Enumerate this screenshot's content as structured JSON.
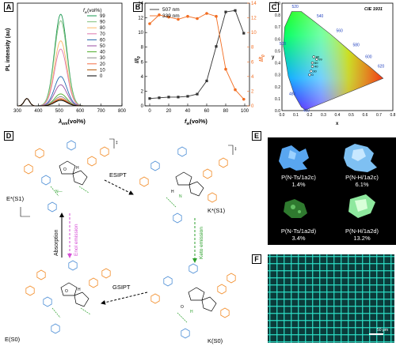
{
  "panels": {
    "a": "A",
    "b": "B",
    "c": "C",
    "d": "D",
    "e": "E",
    "f": "F"
  },
  "panelA": {
    "ylabel": "PL intensity (au)",
    "xlabel": "λ",
    "xlabel_sub": "em",
    "xlabel_unit": "(vol%)",
    "legend_title": "f",
    "legend_title_sub": "w",
    "legend_title_unit": "(vol%)",
    "xticks": [
      "300",
      "400",
      "500",
      "600",
      "700",
      "800"
    ]
  },
  "panelB": {
    "ylabel_left": "I/I",
    "ylabel_left_sub": "0",
    "ylabel_right": "I/I",
    "ylabel_right_sub": "0",
    "xlabel": "f",
    "xlabel_sub": "w",
    "xlabel_unit": "(vol%)",
    "xticks": [
      "0",
      "20",
      "40",
      "60",
      "80",
      "100"
    ],
    "yticks_left": [
      "0",
      "2",
      "4",
      "6",
      "8",
      "10",
      "12",
      "14"
    ],
    "yticks_right": [
      "0",
      "2",
      "4",
      "6",
      "8",
      "10",
      "12",
      "14"
    ]
  },
  "panelC": {
    "title": "CIE 1931",
    "xlabel": "x",
    "ylabel": "y",
    "wavelengths": [
      "520",
      "540",
      "560",
      "580",
      "600",
      "620",
      "500",
      "480",
      "460"
    ],
    "xticks": [
      "0.0",
      "0.1",
      "0.2",
      "0.3",
      "0.4",
      "0.5",
      "0.6",
      "0.7",
      "0.8"
    ],
    "yticks": [
      "0.0",
      "0.1",
      "0.2",
      "0.3",
      "0.4",
      "0.5",
      "0.6",
      "0.7",
      "0.8",
      "0.9"
    ]
  },
  "panelD": {
    "state_es1": "E*(S1)",
    "state_ks1": "K*(S1)",
    "state_ks0": "K(S0)",
    "state_es0": "E(S0)",
    "esipt": "ESIPT",
    "gsipt": "GSIPT",
    "absorption": "Absorption",
    "enol_emission": "Enol emission",
    "keto_emission": "Keto emission",
    "bracket_mark": "‡"
  },
  "panelE": {
    "samples": [
      {
        "name": "P(N-Ts/1a2c)",
        "value": "1.4%"
      },
      {
        "name": "P(N-H/1a2c)",
        "value": "6.1%"
      },
      {
        "name": "P(N-Ts/1a2d)",
        "value": "3.4%"
      },
      {
        "name": "P(N-H/1a2d)",
        "value": "13.2%"
      }
    ]
  },
  "panelF": {
    "scale": "50 μm"
  },
  "chart_data": [
    {
      "type": "line",
      "title": "",
      "xlabel": "λem (vol%)",
      "ylabel": "PL intensity (au)",
      "xlim": [
        300,
        800
      ],
      "legend": "top-right",
      "series": [
        {
          "name": "99",
          "color": "#1a9850",
          "peak": 1.0
        },
        {
          "name": "90",
          "color": "#7fbf7b",
          "peak": 0.93
        },
        {
          "name": "80",
          "color": "#fdb863",
          "peak": 0.71
        },
        {
          "name": "70",
          "color": "#de77ae",
          "peak": 0.62
        },
        {
          "name": "60",
          "color": "#2166ac",
          "peak": 0.32
        },
        {
          "name": "50",
          "color": "#984ea3",
          "peak": 0.23
        },
        {
          "name": "40",
          "color": "#4dac26",
          "peak": 0.13
        },
        {
          "name": "30",
          "color": "#888888",
          "peak": 0.1
        },
        {
          "name": "20",
          "color": "#f46d43",
          "peak": 0.08
        },
        {
          "name": "10",
          "color": "#b35806",
          "peak": 0.07
        },
        {
          "name": "0",
          "color": "#000000",
          "peak": 0.06
        }
      ]
    },
    {
      "type": "line",
      "title": "",
      "xlabel": "fw (vol%)",
      "ylabel": "I/I0",
      "xlim": [
        0,
        100
      ],
      "ylim": [
        0,
        14
      ],
      "legend": "top-left",
      "x": [
        0,
        10,
        20,
        30,
        40,
        50,
        60,
        70,
        80,
        90,
        99
      ],
      "series": [
        {
          "name": "507 nm",
          "color": "#333333",
          "values": [
            1.0,
            1.1,
            1.2,
            1.2,
            1.3,
            1.6,
            3.4,
            8.1,
            12.8,
            13.0,
            9.9
          ]
        },
        {
          "name": "339 nm",
          "color": "#f26d21",
          "values": [
            11.2,
            12.4,
            12.1,
            11.8,
            12.2,
            11.9,
            12.6,
            12.2,
            5.0,
            2.2,
            0.9
          ]
        }
      ]
    },
    {
      "type": "scatter",
      "title": "CIE 1931",
      "xlabel": "x",
      "ylabel": "y",
      "xlim": [
        0,
        0.8
      ],
      "ylim": [
        0,
        0.9
      ],
      "points": [
        {
          "label": "99",
          "x": 0.25,
          "y": 0.43
        },
        {
          "label": "80",
          "x": 0.23,
          "y": 0.45
        },
        {
          "label": "60",
          "x": 0.22,
          "y": 0.4
        },
        {
          "label": "40",
          "x": 0.22,
          "y": 0.37
        },
        {
          "label": "30",
          "x": 0.21,
          "y": 0.33
        },
        {
          "label": "0",
          "x": 0.2,
          "y": 0.3
        }
      ]
    }
  ]
}
